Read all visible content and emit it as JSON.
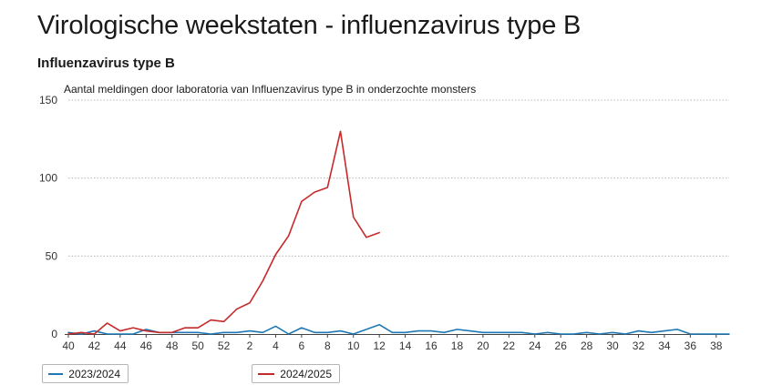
{
  "header": {
    "title": "Virologische weekstaten - influenzavirus type B",
    "section_title": "Influenzavirus type B"
  },
  "chart_data": {
    "type": "line",
    "title": "Aantal meldingen door laboratoria van Influenzavirus type B in onderzochte monsters",
    "xlabel": "",
    "ylabel": "",
    "ylim": [
      0,
      150
    ],
    "yticks": [
      0,
      50,
      100,
      150
    ],
    "grid": true,
    "legend_position": "bottom",
    "x": [
      "40",
      "41",
      "42",
      "43",
      "44",
      "45",
      "46",
      "47",
      "48",
      "49",
      "50",
      "51",
      "52",
      "1",
      "2",
      "3",
      "4",
      "5",
      "6",
      "7",
      "8",
      "9",
      "10",
      "11",
      "12",
      "13",
      "14",
      "15",
      "16",
      "17",
      "18",
      "19",
      "20",
      "21",
      "22",
      "23",
      "24",
      "25",
      "26",
      "27",
      "28",
      "29",
      "30",
      "31",
      "32",
      "33",
      "34",
      "35",
      "36",
      "37",
      "38",
      "39"
    ],
    "xtick_labels": [
      "40",
      "42",
      "44",
      "46",
      "48",
      "50",
      "52",
      "2",
      "4",
      "6",
      "8",
      "10",
      "12",
      "14",
      "16",
      "18",
      "20",
      "22",
      "24",
      "26",
      "28",
      "30",
      "32",
      "34",
      "36",
      "38"
    ],
    "series": [
      {
        "name": "2023/2024",
        "color": "#1f78b4",
        "values": [
          1,
          0,
          2,
          0,
          0,
          0,
          3,
          1,
          1,
          1,
          1,
          0,
          1,
          1,
          2,
          1,
          5,
          0,
          4,
          1,
          1,
          2,
          0,
          3,
          6,
          1,
          1,
          2,
          2,
          1,
          3,
          2,
          1,
          1,
          1,
          1,
          0,
          1,
          0,
          0,
          1,
          0,
          1,
          0,
          2,
          1,
          2,
          3,
          0,
          0,
          0,
          0
        ]
      },
      {
        "name": "2024/2025",
        "color": "#c62a2a",
        "values": [
          0,
          1,
          0,
          7,
          2,
          4,
          2,
          1,
          1,
          4,
          4,
          9,
          8,
          16,
          20,
          34,
          51,
          63,
          85,
          91,
          94,
          130,
          75,
          62,
          65,
          null,
          null,
          null,
          null,
          null,
          null,
          null,
          null,
          null,
          null,
          null,
          null,
          null,
          null,
          null,
          null,
          null,
          null,
          null,
          null,
          null,
          null,
          null,
          null,
          null,
          null,
          null
        ]
      }
    ]
  }
}
